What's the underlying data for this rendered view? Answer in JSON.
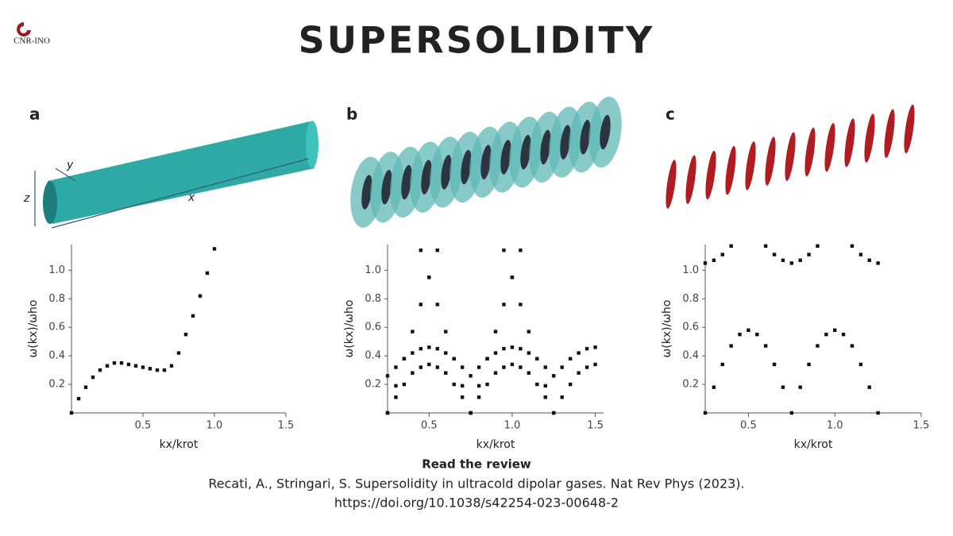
{
  "logo": "CNR-INO",
  "title": "SUPERSOLIDITY",
  "illustration_labels": {
    "x": "x",
    "y": "y",
    "z": "z"
  },
  "chart_data": [
    {
      "type": "scatter",
      "panel": "a",
      "x_label": "kx/krot",
      "y_label": "ω(kx)/ωho",
      "xlim": [
        0,
        1.5
      ],
      "ylim": [
        0,
        1.18
      ],
      "xticks": [
        0.5,
        {
          "value": 1,
          "label": "1.0"
        },
        1.5
      ],
      "yticks": [
        0.2,
        0.4,
        0.6,
        0.8,
        {
          "value": 1,
          "label": "1.0"
        }
      ],
      "series": [
        {
          "color": "#111111",
          "x": [
            0,
            0.05,
            0.1,
            0.15,
            0.2,
            0.25,
            0.3,
            0.35,
            0.4,
            0.45,
            0.5,
            0.55,
            0.6,
            0.65,
            0.7,
            0.75,
            0.8,
            0.85,
            0.9,
            0.95,
            1.0
          ],
          "values": [
            0,
            0.1,
            0.18,
            0.25,
            0.3,
            0.33,
            0.35,
            0.35,
            0.34,
            0.33,
            0.32,
            0.31,
            0.3,
            0.3,
            0.33,
            0.42,
            0.55,
            0.68,
            0.82,
            0.98,
            1.15
          ]
        }
      ]
    },
    {
      "type": "scatter",
      "panel": "b",
      "x_label": "kx/krot",
      "y_label": "ω(kx)/ωho",
      "xlim": [
        0.25,
        1.55
      ],
      "ylim": [
        0,
        1.18
      ],
      "xticks": [
        0.5,
        {
          "value": 1,
          "label": "1.0"
        },
        1.5
      ],
      "yticks": [
        0.2,
        0.4,
        0.6,
        0.8,
        {
          "value": 1,
          "label": "1.0"
        }
      ],
      "series": [
        {
          "color": "#111111",
          "x": [
            0.25,
            0.3,
            0.35,
            0.4,
            0.45,
            0.5,
            0.55,
            0.6,
            0.65,
            0.7,
            0.75,
            0.8,
            0.85,
            0.9,
            0.95,
            1.0,
            1.05,
            1.1,
            1.15,
            1.2,
            1.25,
            1.3,
            1.35,
            1.4,
            1.45,
            1.5
          ],
          "values": [
            0,
            0.11,
            0.2,
            0.28,
            0.32,
            0.34,
            0.32,
            0.28,
            0.2,
            0.11,
            0,
            0.11,
            0.2,
            0.28,
            0.32,
            0.34,
            0.32,
            0.28,
            0.2,
            0.11,
            0,
            0.11,
            0.2,
            0.28,
            0.32,
            0.34
          ]
        },
        {
          "color": "#111111",
          "x": [
            0.25,
            0.3,
            0.35,
            0.4,
            0.45,
            0.5,
            0.55,
            0.6,
            0.65,
            0.7,
            0.75,
            0.8,
            0.85,
            0.9,
            0.95,
            1.0,
            1.05,
            1.1,
            1.15,
            1.2,
            1.25,
            1.3,
            1.35,
            1.4,
            1.45,
            1.5
          ],
          "values": [
            0.26,
            0.32,
            0.38,
            0.42,
            0.45,
            0.46,
            0.45,
            0.42,
            0.38,
            0.32,
            0.26,
            0.32,
            0.38,
            0.42,
            0.45,
            0.46,
            0.45,
            0.42,
            0.38,
            0.32,
            0.26,
            0.32,
            0.38,
            0.42,
            0.45,
            0.46
          ]
        },
        {
          "color": "#111111",
          "x": [
            0.25,
            0.3,
            0.35,
            0.4,
            0.45,
            0.5,
            0.55
          ],
          "values": [
            0,
            0.19,
            0.38,
            0.57,
            0.76,
            0.95,
            1.14
          ]
        },
        {
          "color": "#111111",
          "x": [
            0.45,
            0.5,
            0.55,
            0.6,
            0.65,
            0.7,
            0.75
          ],
          "values": [
            1.14,
            0.95,
            0.76,
            0.57,
            0.38,
            0.19,
            0
          ]
        },
        {
          "color": "#111111",
          "x": [
            0.75,
            0.8,
            0.85,
            0.9,
            0.95,
            1.0,
            1.05
          ],
          "values": [
            0,
            0.19,
            0.38,
            0.57,
            0.76,
            0.95,
            1.14
          ]
        },
        {
          "color": "#111111",
          "x": [
            0.95,
            1.0,
            1.05,
            1.1,
            1.15,
            1.2,
            1.25
          ],
          "values": [
            1.14,
            0.95,
            0.76,
            0.57,
            0.38,
            0.19,
            0
          ]
        }
      ]
    },
    {
      "type": "scatter",
      "panel": "c",
      "x_label": "kx/krot",
      "y_label": "ω(kx)/ωho",
      "xlim": [
        0.25,
        1.5
      ],
      "ylim": [
        0,
        1.18
      ],
      "xticks": [
        0.5,
        {
          "value": 1,
          "label": "1.0"
        },
        1.5
      ],
      "yticks": [
        0.2,
        0.4,
        0.6,
        0.8,
        {
          "value": 1,
          "label": "1.0"
        }
      ],
      "series": [
        {
          "color": "#111111",
          "x": [
            0.25,
            0.3,
            0.35,
            0.4,
            0.45,
            0.5,
            0.55,
            0.6,
            0.65,
            0.7,
            0.75,
            0.8,
            0.85,
            0.9,
            0.95,
            1.0,
            1.05,
            1.1,
            1.15,
            1.2,
            1.25
          ],
          "values": [
            0,
            0.18,
            0.34,
            0.47,
            0.55,
            0.58,
            0.55,
            0.47,
            0.34,
            0.18,
            0,
            0.18,
            0.34,
            0.47,
            0.55,
            0.58,
            0.55,
            0.47,
            0.34,
            0.18,
            0
          ]
        },
        {
          "color": "#111111",
          "x": [
            0.25,
            0.3,
            0.35,
            0.4,
            0.5,
            0.6,
            0.65,
            0.7,
            0.75,
            0.8,
            0.85,
            0.9,
            1.0,
            1.1,
            1.15,
            1.2,
            1.25
          ],
          "values": [
            1.05,
            1.07,
            1.11,
            1.17,
            null,
            1.17,
            1.11,
            1.07,
            1.05,
            1.07,
            1.11,
            1.17,
            null,
            1.17,
            1.11,
            1.07,
            1.05
          ]
        }
      ]
    }
  ],
  "footer": {
    "heading": "Read the review",
    "citation": "Recati, A., Stringari, S. Supersolidity in ultracold dipolar gases. Nat Rev Phys (2023).",
    "doi": "https://doi.org/10.1038/s42254-023-00648-2"
  }
}
